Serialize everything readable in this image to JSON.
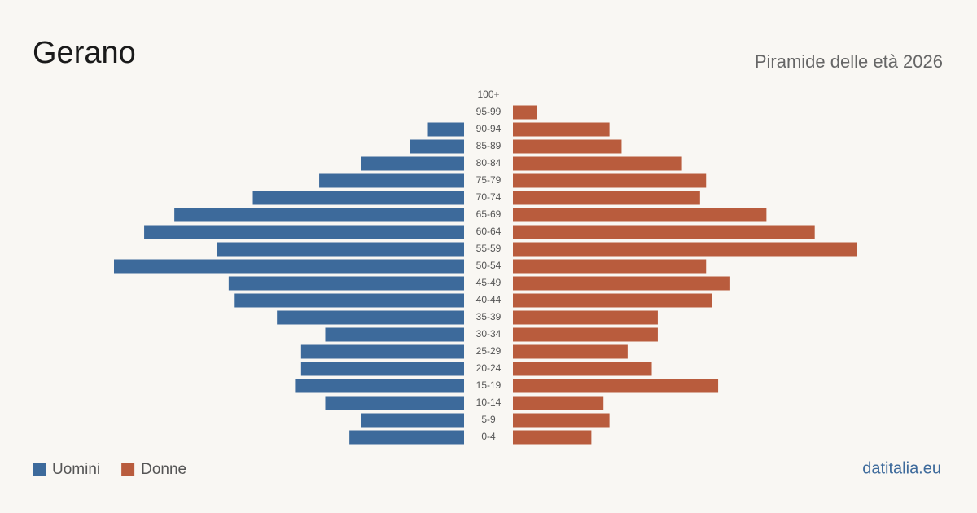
{
  "chart_data": {
    "type": "pyramid",
    "title": "Gerano",
    "subtitle": "Piramide delle età 2026",
    "source": "datitalia.eu",
    "categories": [
      "100+",
      "95-99",
      "90-94",
      "85-89",
      "80-84",
      "75-79",
      "70-74",
      "65-69",
      "60-64",
      "55-59",
      "50-54",
      "45-49",
      "40-44",
      "35-39",
      "30-34",
      "25-29",
      "20-24",
      "15-19",
      "10-14",
      "5-9",
      "0-4"
    ],
    "series": [
      {
        "name": "Uomini",
        "color": "#3d6a9b",
        "values": [
          0,
          0,
          6,
          9,
          17,
          24,
          35,
          48,
          53,
          41,
          58,
          39,
          38,
          31,
          23,
          27,
          27,
          28,
          23,
          17,
          19
        ]
      },
      {
        "name": "Donne",
        "color": "#b95c3d",
        "values": [
          0,
          4,
          16,
          18,
          28,
          32,
          31,
          42,
          50,
          57,
          32,
          36,
          33,
          24,
          24,
          19,
          23,
          34,
          15,
          16,
          13
        ]
      }
    ]
  }
}
